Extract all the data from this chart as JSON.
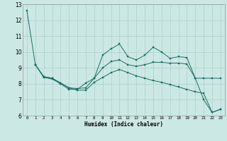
{
  "xlabel": "Humidex (Indice chaleur)",
  "bg_color": "#cce8e4",
  "line_color": "#1a6e64",
  "grid_color": "#aacfca",
  "xlim": [
    -0.5,
    23.5
  ],
  "ylim": [
    6,
    13
  ],
  "yticks": [
    6,
    7,
    8,
    9,
    10,
    11,
    12,
    13
  ],
  "xticks": [
    0,
    1,
    2,
    3,
    4,
    5,
    6,
    7,
    8,
    9,
    10,
    11,
    12,
    13,
    14,
    15,
    16,
    17,
    18,
    19,
    20,
    21,
    22,
    23
  ],
  "line1_x": [
    0,
    1,
    2,
    3,
    4,
    5,
    6,
    7,
    8,
    9,
    10,
    11,
    12,
    13,
    14,
    15,
    16,
    17,
    18,
    19,
    20,
    21,
    22,
    23
  ],
  "line1_y": [
    12.6,
    9.2,
    8.4,
    8.3,
    8.0,
    7.65,
    7.65,
    8.05,
    8.35,
    9.8,
    10.2,
    10.5,
    9.7,
    9.5,
    9.8,
    10.3,
    10.0,
    9.6,
    9.7,
    9.65,
    8.35,
    7.0,
    6.2,
    6.4
  ],
  "line2_x": [
    1,
    2,
    3,
    4,
    5,
    6,
    7,
    8,
    9,
    10,
    11,
    12,
    13,
    14,
    15,
    16,
    17,
    18,
    19,
    20,
    21,
    22,
    23
  ],
  "line2_y": [
    9.2,
    8.45,
    8.35,
    8.05,
    7.75,
    7.7,
    7.75,
    8.35,
    9.0,
    9.4,
    9.5,
    9.2,
    9.1,
    9.2,
    9.35,
    9.35,
    9.3,
    9.3,
    9.25,
    8.35,
    8.35,
    8.35,
    8.35
  ],
  "line3_x": [
    1,
    2,
    3,
    4,
    5,
    6,
    7,
    8,
    9,
    10,
    11,
    12,
    13,
    14,
    15,
    16,
    17,
    18,
    19,
    20,
    21,
    22,
    23
  ],
  "line3_y": [
    9.2,
    8.45,
    8.35,
    8.05,
    7.75,
    7.6,
    7.6,
    8.1,
    8.4,
    8.7,
    8.9,
    8.7,
    8.5,
    8.35,
    8.2,
    8.1,
    7.95,
    7.8,
    7.65,
    7.5,
    7.4,
    6.2,
    6.4
  ]
}
